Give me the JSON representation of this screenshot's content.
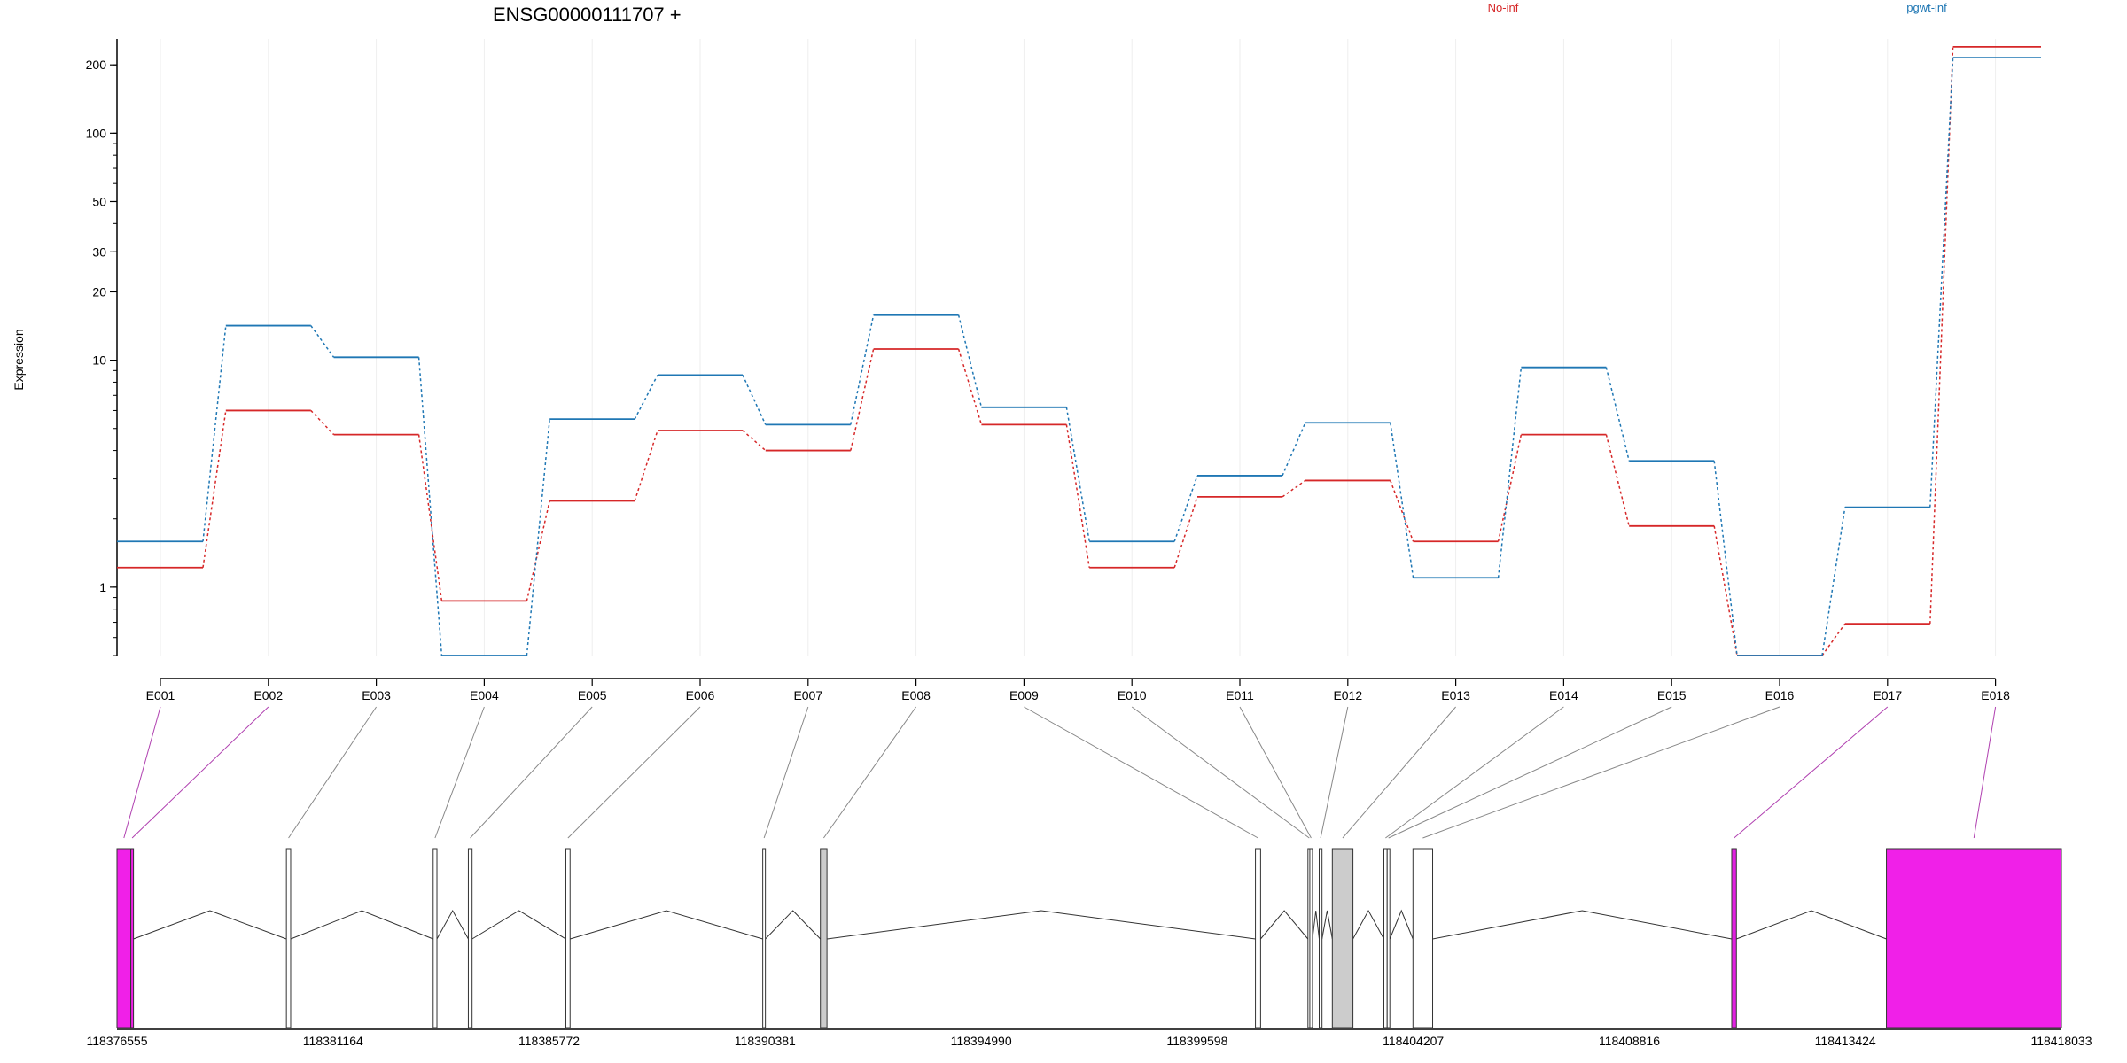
{
  "chart_data": {
    "type": "line",
    "title": "ENSG00000111707 +",
    "ylabel": "Expression",
    "y_scale": "log",
    "ylim": [
      0.5,
      260
    ],
    "y_ticks": [
      1,
      10,
      20,
      30,
      50,
      100,
      200
    ],
    "legend": {
      "placement": "top-right"
    },
    "categories": [
      "E001",
      "E002",
      "E003",
      "E004",
      "E005",
      "E006",
      "E007",
      "E008",
      "E009",
      "E010",
      "E011",
      "E012",
      "E013",
      "E014",
      "E015",
      "E016",
      "E017",
      "E018"
    ],
    "series": [
      {
        "name": "No-inf",
        "color": "#d62728",
        "values": [
          1.22,
          6.0,
          4.7,
          0.87,
          2.4,
          4.9,
          4.0,
          11.2,
          5.2,
          1.22,
          2.5,
          2.95,
          1.59,
          4.7,
          1.86,
          0.5,
          0.69,
          240
        ]
      },
      {
        "name": "pgwt-inf",
        "color": "#1f77b4",
        "values": [
          1.59,
          14.2,
          10.3,
          0.5,
          5.5,
          8.6,
          5.2,
          15.8,
          6.2,
          1.59,
          3.1,
          5.3,
          1.1,
          9.3,
          3.6,
          0.5,
          2.25,
          215
        ]
      }
    ],
    "gene_model": {
      "axis_ticks": [
        "118376555",
        "118381164",
        "118385772",
        "118390381",
        "118394990",
        "118399598",
        "118404207",
        "118408816",
        "118413424",
        "118418033"
      ],
      "axis_range": [
        118376555,
        118418033
      ],
      "exons": [
        {
          "id": "E001",
          "start": 118376555,
          "end": 118376850,
          "fill": "#f020e8"
        },
        {
          "id": "E002",
          "start": 118376850,
          "end": 118376860,
          "fill": "#f020e8"
        },
        {
          "id": "E003",
          "start": 118380169,
          "end": 118380260,
          "fill": "#ffffff"
        },
        {
          "id": "E004",
          "start": 118383300,
          "end": 118383380,
          "fill": "#ffffff"
        },
        {
          "id": "E005",
          "start": 118384050,
          "end": 118384130,
          "fill": "#ffffff"
        },
        {
          "id": "E006",
          "start": 118386130,
          "end": 118386220,
          "fill": "#ffffff"
        },
        {
          "id": "E007",
          "start": 118390330,
          "end": 118390380,
          "fill": "#ffffff"
        },
        {
          "id": "E008",
          "start": 118391560,
          "end": 118391700,
          "fill": "#cccccc"
        },
        {
          "id": "E009",
          "start": 118400840,
          "end": 118400950,
          "fill": "#ffffff"
        },
        {
          "id": "E010",
          "start": 118401960,
          "end": 118402000,
          "fill": "#ffffff"
        },
        {
          "id": "E011",
          "start": 118402000,
          "end": 118402040,
          "fill": "#ffffff"
        },
        {
          "id": "E012",
          "start": 118402200,
          "end": 118402260,
          "fill": "#ffffff"
        },
        {
          "id": "E013",
          "start": 118402480,
          "end": 118402920,
          "fill": "#cccccc"
        },
        {
          "id": "E014",
          "start": 118403580,
          "end": 118403650,
          "fill": "#ffffff"
        },
        {
          "id": "E015",
          "start": 118403650,
          "end": 118403700,
          "fill": "#ffffff"
        },
        {
          "id": "E016",
          "start": 118404200,
          "end": 118404620,
          "fill": "#ffffff"
        },
        {
          "id": "E017",
          "start": 118411000,
          "end": 118411100,
          "fill": "#e020e0"
        },
        {
          "id": "E018",
          "start": 118414300,
          "end": 118418033,
          "fill": "#f020e8"
        }
      ]
    }
  }
}
